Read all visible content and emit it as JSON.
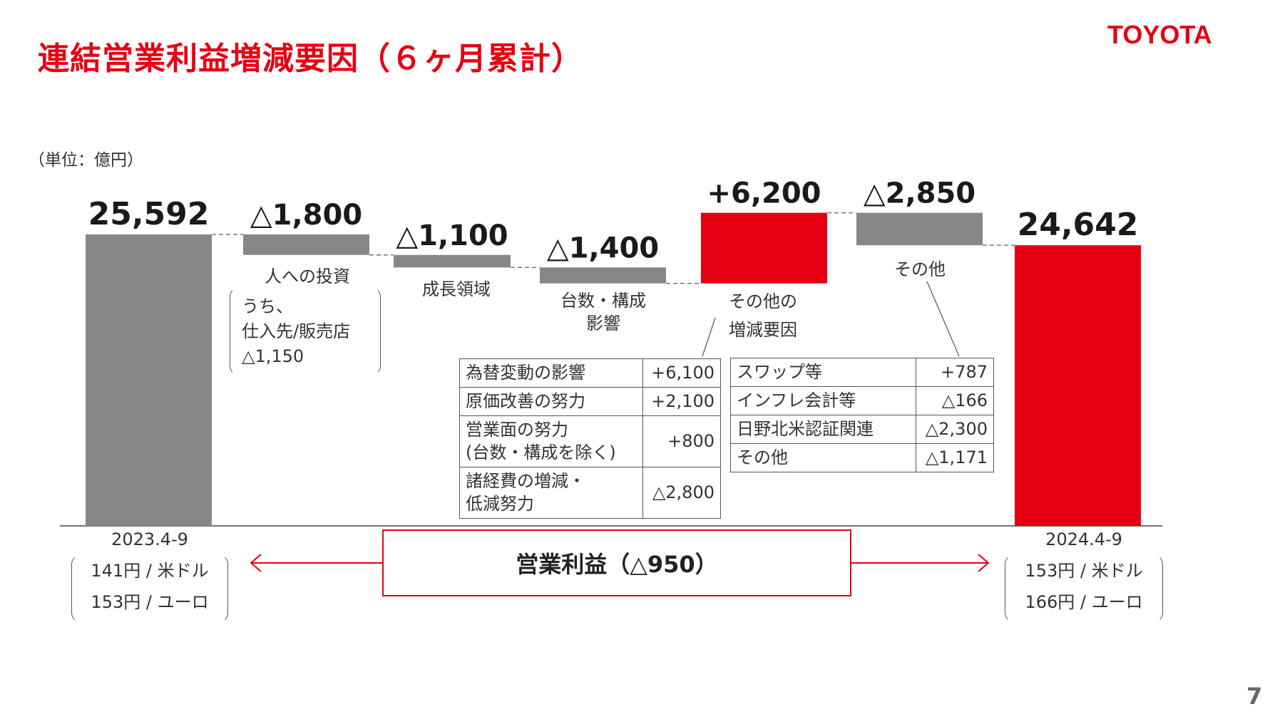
{
  "title": "連結営業利益増減要因（６ヶ月累計）",
  "logo": "TOYOTA",
  "unit": "（単位：億円）",
  "page_number": "7",
  "colors": {
    "red": "#e60012",
    "gray": "#878787",
    "connector": "#777777"
  },
  "chart_data": {
    "type": "bar",
    "subtype": "waterfall",
    "categories": [
      "2023.4-9",
      "人への投資",
      "成長領域",
      "台数・構成影響",
      "その他の増減要因",
      "その他",
      "2024.4-9"
    ],
    "values": [
      25592,
      -1800,
      -1100,
      -1400,
      6200,
      -2850,
      24642
    ],
    "kinds": [
      "total",
      "delta",
      "delta",
      "delta",
      "delta",
      "delta",
      "total"
    ],
    "value_labels": [
      "25,592",
      "△1,800",
      "△1,100",
      "△1,400",
      "+6,200",
      "△2,850",
      "24,642"
    ],
    "ylim": [
      0,
      25592
    ]
  },
  "labels": {
    "b1": "人への投資",
    "b1_note": [
      "うち、",
      "仕入先/販売店",
      "△1,150"
    ],
    "b2": "成長領域",
    "b3": [
      "台数・構成",
      "影響"
    ],
    "b4": [
      "その他の",
      "増減要因"
    ],
    "b5": "その他"
  },
  "table_left": [
    {
      "item": "為替変動の影響",
      "value": "+6,100"
    },
    {
      "item": "原価改善の努力",
      "value": "+2,100"
    },
    {
      "item": "営業面の努力\n(台数・構成を除く)",
      "value": "+800"
    },
    {
      "item": "諸経費の増減・\n低減努力",
      "value": "△2,800"
    }
  ],
  "table_right": [
    {
      "item": "スワップ等",
      "value": "+787"
    },
    {
      "item": "インフレ会計等",
      "value": "△166"
    },
    {
      "item": "日野北米認証関連",
      "value": "△2,300"
    },
    {
      "item": "その他",
      "value": "△1,171"
    }
  ],
  "left_period": {
    "label": "2023.4-9",
    "usd": "141円 / 米ドル",
    "eur": "153円 / ユーロ"
  },
  "right_period": {
    "label": "2024.4-9",
    "usd": "153円 / 米ドル",
    "eur": "166円 / ユーロ"
  },
  "operating_income": "営業利益（△950）"
}
